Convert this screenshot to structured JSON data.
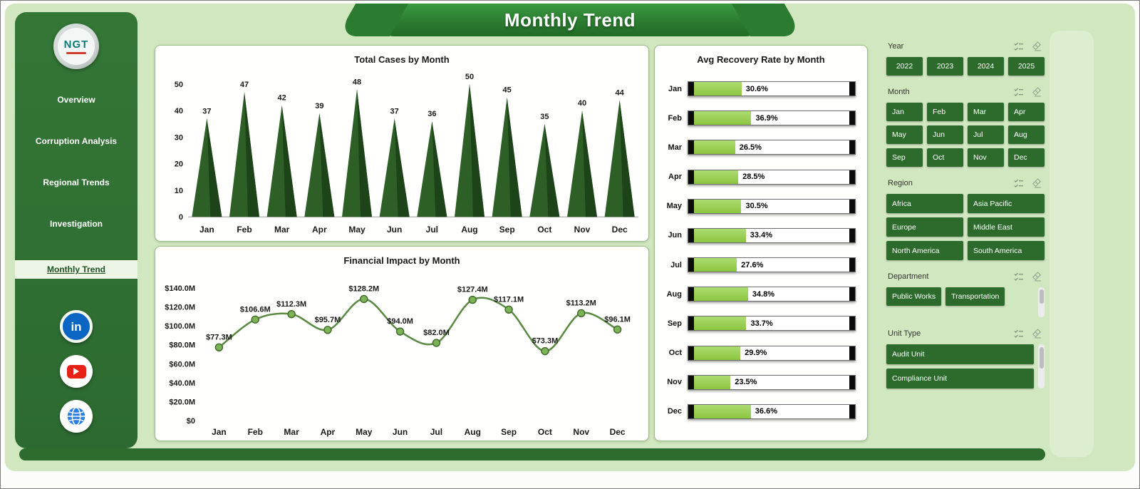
{
  "header": {
    "title": "Monthly Trend"
  },
  "logo": {
    "text": "NGT"
  },
  "sidebar": {
    "items": [
      {
        "label": "Overview",
        "active": false
      },
      {
        "label": "Corruption Analysis",
        "active": false
      },
      {
        "label": "Regional Trends",
        "active": false
      },
      {
        "label": "Investigation",
        "active": false
      },
      {
        "label": "Monthly Trend",
        "active": true
      }
    ]
  },
  "social": {
    "linkedin_text": "in"
  },
  "filters": {
    "year": {
      "label": "Year",
      "options": [
        "2022",
        "2023",
        "2024",
        "2025"
      ]
    },
    "month": {
      "label": "Month",
      "options": [
        "Jan",
        "Feb",
        "Mar",
        "Apr",
        "May",
        "Jun",
        "Jul",
        "Aug",
        "Sep",
        "Oct",
        "Nov",
        "Dec"
      ]
    },
    "region": {
      "label": "Region",
      "options": [
        "Africa",
        "Asia Pacific",
        "Europe",
        "Middle East",
        "North America",
        "South America"
      ]
    },
    "department": {
      "label": "Department",
      "options": [
        "Public Works",
        "Transportation"
      ]
    },
    "unit_type": {
      "label": "Unit Type",
      "options": [
        "Audit Unit",
        "Compliance Unit"
      ]
    }
  },
  "chart_data": [
    {
      "id": "total_cases_by_month",
      "type": "bar",
      "style": "triangle",
      "title": "Total Cases by Month",
      "categories": [
        "Jan",
        "Feb",
        "Mar",
        "Apr",
        "May",
        "Jun",
        "Jul",
        "Aug",
        "Sep",
        "Oct",
        "Nov",
        "Dec"
      ],
      "values": [
        37,
        47,
        42,
        39,
        48,
        37,
        36,
        50,
        45,
        35,
        40,
        44
      ],
      "ylim": [
        0,
        50
      ],
      "yticks": [
        0,
        10,
        20,
        30,
        40,
        50
      ],
      "grid": false
    },
    {
      "id": "financial_impact_by_month",
      "type": "line",
      "title": "Financial Impact by Month",
      "categories": [
        "Jan",
        "Feb",
        "Mar",
        "Apr",
        "May",
        "Jun",
        "Jul",
        "Aug",
        "Sep",
        "Oct",
        "Nov",
        "Dec"
      ],
      "values": [
        77.3,
        106.6,
        112.3,
        95.7,
        128.2,
        94.0,
        82.0,
        127.4,
        117.1,
        73.3,
        113.2,
        96.1
      ],
      "labels": [
        "$77.3M",
        "$106.6M",
        "$112.3M",
        "$95.7M",
        "$128.2M",
        "$94.0M",
        "$82.0M",
        "$127.4M",
        "$117.1M",
        "$73.3M",
        "$113.2M",
        "$96.1M"
      ],
      "ylim": [
        0,
        140
      ],
      "ytick_labels": [
        "$0",
        "$20.0M",
        "$40.0M",
        "$60.0M",
        "$80.0M",
        "$100.0M",
        "$120.0M",
        "$140.0M"
      ],
      "grid": false
    },
    {
      "id": "avg_recovery_rate_by_month",
      "type": "bar",
      "orientation": "horizontal",
      "style": "bullet",
      "title": "Avg Recovery Rate by Month",
      "categories": [
        "Jan",
        "Feb",
        "Mar",
        "Apr",
        "May",
        "Jun",
        "Jul",
        "Aug",
        "Sep",
        "Oct",
        "Nov",
        "Dec"
      ],
      "values": [
        30.6,
        36.9,
        26.5,
        28.5,
        30.5,
        33.4,
        27.6,
        34.8,
        33.7,
        29.9,
        23.5,
        36.6
      ],
      "labels": [
        "30.6%",
        "36.9%",
        "26.5%",
        "28.5%",
        "30.5%",
        "33.4%",
        "27.6%",
        "34.8%",
        "33.7%",
        "29.9%",
        "23.5%",
        "36.6%"
      ],
      "xlim": [
        0,
        100
      ]
    }
  ],
  "colors": {
    "accent_dark_green": "#2d6b2d",
    "header_green": "#2b7c30",
    "panel_light_green": "#d1e7c0",
    "cone_green": "#2e5f26",
    "cone_shadow_green": "#1d4318",
    "line_green": "#5a8a42",
    "bar_fill_green": "#8cc63f",
    "cap_black": "#0b0b0b",
    "linkedin_blue": "#0a66c2",
    "youtube_red": "#e62117",
    "globe_blue": "#2a7de1"
  }
}
